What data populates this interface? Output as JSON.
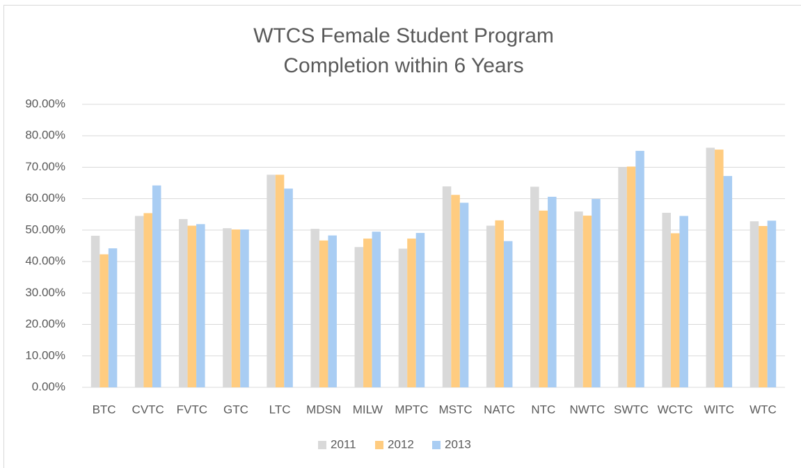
{
  "chart_data": {
    "type": "bar",
    "title": [
      "WTCS Female Student Program",
      "Completion within 6 Years"
    ],
    "categories": [
      "BTC",
      "CVTC",
      "FVTC",
      "GTC",
      "LTC",
      "MDSN",
      "MILW",
      "MPTC",
      "MSTC",
      "NATC",
      "NTC",
      "NWTC",
      "SWTC",
      "WCTC",
      "WITC",
      "WTC"
    ],
    "series": [
      {
        "name": "2011",
        "color": "#d9d9d9",
        "values": [
          48.2,
          54.5,
          53.5,
          50.6,
          67.6,
          50.4,
          44.6,
          44.1,
          63.9,
          51.4,
          63.8,
          55.9,
          70.0,
          55.5,
          76.2,
          52.8
        ]
      },
      {
        "name": "2012",
        "color": "#ffcc80",
        "values": [
          42.3,
          55.4,
          51.4,
          50.2,
          67.6,
          46.7,
          47.3,
          47.3,
          61.2,
          53.1,
          56.2,
          54.6,
          70.2,
          49.0,
          75.6,
          51.3
        ]
      },
      {
        "name": "2013",
        "color": "#a9cdf3",
        "values": [
          44.2,
          64.2,
          51.9,
          50.2,
          63.2,
          48.3,
          49.5,
          49.1,
          58.7,
          46.5,
          60.6,
          59.9,
          75.2,
          54.5,
          67.2,
          53.0
        ]
      }
    ],
    "ylim": [
      0,
      90
    ],
    "yticks": [
      {
        "value": 0,
        "label": "0.00%"
      },
      {
        "value": 10,
        "label": "10.00%"
      },
      {
        "value": 20,
        "label": "20.00%"
      },
      {
        "value": 30,
        "label": "30.00%"
      },
      {
        "value": 40,
        "label": "40.00%"
      },
      {
        "value": 50,
        "label": "50.00%"
      },
      {
        "value": 60,
        "label": "60.00%"
      },
      {
        "value": 70,
        "label": "70.00%"
      },
      {
        "value": 80,
        "label": "80.00%"
      },
      {
        "value": 90,
        "label": "90.00%"
      }
    ],
    "grid": true,
    "legend": "bottom"
  }
}
